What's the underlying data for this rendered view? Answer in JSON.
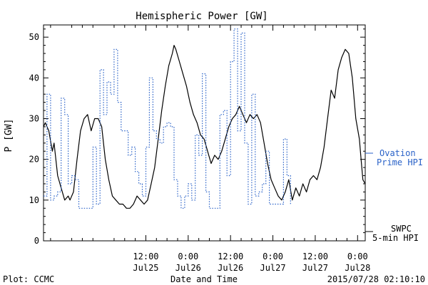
{
  "chart_data": {
    "type": "line",
    "title": "Hemispheric Power [GW]",
    "ylabel": "P [GW]",
    "xlabel": "Date and Time",
    "ylim": [
      0,
      53
    ],
    "yticks": [
      0,
      10,
      20,
      30,
      40,
      50
    ],
    "xlim": [
      "2015-07-24 07:00",
      "2015-07-28 02:10"
    ],
    "xticks": [
      {
        "at": "2015-07-25 12:00",
        "time": "12:00",
        "date": "Jul25"
      },
      {
        "at": "2015-07-26 00:00",
        "time": "0:00",
        "date": "Jul26"
      },
      {
        "at": "2015-07-26 12:00",
        "time": "12:00",
        "date": "Jul26"
      },
      {
        "at": "2015-07-27 00:00",
        "time": "0:00",
        "date": "Jul27"
      },
      {
        "at": "2015-07-27 12:00",
        "time": "12:00",
        "date": "Jul27"
      },
      {
        "at": "2015-07-28 00:00",
        "time": "0:00",
        "date": "Jul28"
      }
    ],
    "series": [
      {
        "name": "SWPC 5-min HPI",
        "style": "solid",
        "color": "#000000",
        "points": [
          [
            "2015-07-24 07:00",
            28
          ],
          [
            "2015-07-24 07:30",
            29
          ],
          [
            "2015-07-24 08:30",
            27
          ],
          [
            "2015-07-24 09:30",
            22
          ],
          [
            "2015-07-24 10:00",
            24
          ],
          [
            "2015-07-24 10:30",
            20
          ],
          [
            "2015-07-24 11:00",
            16
          ],
          [
            "2015-07-24 12:00",
            13
          ],
          [
            "2015-07-24 13:00",
            10
          ],
          [
            "2015-07-24 14:00",
            11
          ],
          [
            "2015-07-24 14:30",
            10
          ],
          [
            "2015-07-24 15:30",
            12
          ],
          [
            "2015-07-24 16:30",
            20
          ],
          [
            "2015-07-24 17:30",
            27
          ],
          [
            "2015-07-24 18:30",
            30
          ],
          [
            "2015-07-24 19:30",
            31
          ],
          [
            "2015-07-24 20:30",
            27
          ],
          [
            "2015-07-24 21:30",
            30
          ],
          [
            "2015-07-24 22:30",
            30
          ],
          [
            "2015-07-24 23:30",
            28
          ],
          [
            "2015-07-25 00:30",
            20
          ],
          [
            "2015-07-25 01:30",
            15
          ],
          [
            "2015-07-25 02:30",
            11
          ],
          [
            "2015-07-25 03:30",
            10
          ],
          [
            "2015-07-25 04:30",
            9
          ],
          [
            "2015-07-25 05:30",
            9
          ],
          [
            "2015-07-25 06:30",
            8
          ],
          [
            "2015-07-25 07:30",
            8
          ],
          [
            "2015-07-25 08:30",
            9
          ],
          [
            "2015-07-25 09:30",
            11
          ],
          [
            "2015-07-25 10:30",
            10
          ],
          [
            "2015-07-25 11:30",
            9
          ],
          [
            "2015-07-25 12:30",
            10
          ],
          [
            "2015-07-25 13:30",
            14
          ],
          [
            "2015-07-25 14:30",
            18
          ],
          [
            "2015-07-25 15:30",
            25
          ],
          [
            "2015-07-25 16:30",
            32
          ],
          [
            "2015-07-25 17:30",
            38
          ],
          [
            "2015-07-25 18:30",
            43
          ],
          [
            "2015-07-25 19:30",
            46
          ],
          [
            "2015-07-25 20:00",
            48
          ],
          [
            "2015-07-25 20:30",
            47
          ],
          [
            "2015-07-25 21:30",
            44
          ],
          [
            "2015-07-25 22:30",
            41
          ],
          [
            "2015-07-25 23:30",
            38
          ],
          [
            "2015-07-26 00:30",
            34
          ],
          [
            "2015-07-26 01:30",
            31
          ],
          [
            "2015-07-26 02:30",
            29
          ],
          [
            "2015-07-26 03:30",
            26
          ],
          [
            "2015-07-26 04:30",
            25
          ],
          [
            "2015-07-26 05:30",
            22
          ],
          [
            "2015-07-26 06:30",
            19
          ],
          [
            "2015-07-26 07:30",
            21
          ],
          [
            "2015-07-26 08:30",
            20
          ],
          [
            "2015-07-26 09:30",
            22
          ],
          [
            "2015-07-26 10:30",
            25
          ],
          [
            "2015-07-26 11:30",
            28
          ],
          [
            "2015-07-26 12:30",
            30
          ],
          [
            "2015-07-26 13:30",
            31
          ],
          [
            "2015-07-26 14:30",
            33
          ],
          [
            "2015-07-26 15:30",
            31
          ],
          [
            "2015-07-26 16:30",
            29
          ],
          [
            "2015-07-26 17:30",
            31
          ],
          [
            "2015-07-26 18:30",
            30
          ],
          [
            "2015-07-26 19:30",
            31
          ],
          [
            "2015-07-26 20:30",
            29
          ],
          [
            "2015-07-26 21:30",
            24
          ],
          [
            "2015-07-26 22:30",
            19
          ],
          [
            "2015-07-26 23:30",
            15
          ],
          [
            "2015-07-27 00:30",
            13
          ],
          [
            "2015-07-27 01:30",
            11
          ],
          [
            "2015-07-27 02:30",
            10
          ],
          [
            "2015-07-27 03:30",
            12
          ],
          [
            "2015-07-27 04:30",
            15
          ],
          [
            "2015-07-27 05:30",
            10
          ],
          [
            "2015-07-27 06:30",
            13
          ],
          [
            "2015-07-27 07:30",
            11
          ],
          [
            "2015-07-27 08:30",
            14
          ],
          [
            "2015-07-27 09:30",
            12
          ],
          [
            "2015-07-27 10:30",
            15
          ],
          [
            "2015-07-27 11:30",
            16
          ],
          [
            "2015-07-27 12:30",
            15
          ],
          [
            "2015-07-27 13:30",
            18
          ],
          [
            "2015-07-27 14:30",
            23
          ],
          [
            "2015-07-27 15:30",
            30
          ],
          [
            "2015-07-27 16:30",
            37
          ],
          [
            "2015-07-27 17:30",
            35
          ],
          [
            "2015-07-27 18:30",
            42
          ],
          [
            "2015-07-27 19:30",
            45
          ],
          [
            "2015-07-27 20:30",
            47
          ],
          [
            "2015-07-27 21:30",
            46
          ],
          [
            "2015-07-27 22:30",
            40
          ],
          [
            "2015-07-27 23:30",
            30
          ],
          [
            "2015-07-28 00:30",
            25
          ],
          [
            "2015-07-28 01:00",
            20
          ],
          [
            "2015-07-28 01:30",
            15
          ],
          [
            "2015-07-28 02:10",
            14
          ]
        ]
      },
      {
        "name": "Ovation Prime HPI",
        "style": "dotted",
        "color": "#2a62c8",
        "points": [
          [
            "2015-07-24 07:00",
            11
          ],
          [
            "2015-07-24 08:00",
            36
          ],
          [
            "2015-07-24 09:00",
            10
          ],
          [
            "2015-07-24 10:00",
            11
          ],
          [
            "2015-07-24 11:00",
            12
          ],
          [
            "2015-07-24 12:00",
            35
          ],
          [
            "2015-07-24 13:00",
            31
          ],
          [
            "2015-07-24 14:00",
            14
          ],
          [
            "2015-07-24 15:00",
            16
          ],
          [
            "2015-07-24 16:00",
            15
          ],
          [
            "2015-07-24 17:00",
            8
          ],
          [
            "2015-07-24 18:00",
            8
          ],
          [
            "2015-07-24 19:00",
            8
          ],
          [
            "2015-07-24 20:00",
            8
          ],
          [
            "2015-07-24 21:00",
            23
          ],
          [
            "2015-07-24 22:00",
            9
          ],
          [
            "2015-07-24 23:00",
            42
          ],
          [
            "2015-07-25 00:00",
            31
          ],
          [
            "2015-07-25 01:00",
            39
          ],
          [
            "2015-07-25 02:00",
            36
          ],
          [
            "2015-07-25 03:00",
            47
          ],
          [
            "2015-07-25 04:00",
            34
          ],
          [
            "2015-07-25 05:00",
            27
          ],
          [
            "2015-07-25 06:00",
            27
          ],
          [
            "2015-07-25 07:00",
            21
          ],
          [
            "2015-07-25 08:00",
            23
          ],
          [
            "2015-07-25 09:00",
            17
          ],
          [
            "2015-07-25 10:00",
            14
          ],
          [
            "2015-07-25 11:00",
            11
          ],
          [
            "2015-07-25 12:00",
            23
          ],
          [
            "2015-07-25 13:00",
            40
          ],
          [
            "2015-07-25 14:00",
            27
          ],
          [
            "2015-07-25 15:00",
            25
          ],
          [
            "2015-07-25 16:00",
            24
          ],
          [
            "2015-07-25 17:00",
            28
          ],
          [
            "2015-07-25 18:00",
            29
          ],
          [
            "2015-07-25 19:00",
            28
          ],
          [
            "2015-07-25 20:00",
            15
          ],
          [
            "2015-07-25 21:00",
            11
          ],
          [
            "2015-07-25 22:00",
            8
          ],
          [
            "2015-07-25 23:00",
            11
          ],
          [
            "2015-07-26 00:00",
            14
          ],
          [
            "2015-07-26 01:00",
            10
          ],
          [
            "2015-07-26 02:00",
            26
          ],
          [
            "2015-07-26 03:00",
            21
          ],
          [
            "2015-07-26 04:00",
            41
          ],
          [
            "2015-07-26 05:00",
            12
          ],
          [
            "2015-07-26 06:00",
            8
          ],
          [
            "2015-07-26 07:00",
            8
          ],
          [
            "2015-07-26 08:00",
            8
          ],
          [
            "2015-07-26 09:00",
            31
          ],
          [
            "2015-07-26 10:00",
            32
          ],
          [
            "2015-07-26 11:00",
            16
          ],
          [
            "2015-07-26 12:00",
            44
          ],
          [
            "2015-07-26 13:00",
            52
          ],
          [
            "2015-07-26 14:00",
            27
          ],
          [
            "2015-07-26 15:00",
            51
          ],
          [
            "2015-07-26 16:00",
            24
          ],
          [
            "2015-07-26 17:00",
            9
          ],
          [
            "2015-07-26 18:00",
            36
          ],
          [
            "2015-07-26 19:00",
            11
          ],
          [
            "2015-07-26 20:00",
            12
          ],
          [
            "2015-07-26 21:00",
            14
          ],
          [
            "2015-07-26 22:00",
            22
          ],
          [
            "2015-07-26 23:00",
            9
          ],
          [
            "2015-07-27 00:00",
            9
          ],
          [
            "2015-07-27 01:00",
            9
          ],
          [
            "2015-07-27 02:00",
            9
          ],
          [
            "2015-07-27 03:00",
            25
          ],
          [
            "2015-07-27 04:00",
            16
          ],
          [
            "2015-07-27 05:00",
            9
          ]
        ]
      }
    ],
    "legend": [
      {
        "series": "Ovation Prime HPI",
        "line1": "Ovation",
        "line2": "Prime HPI",
        "placement": "right"
      },
      {
        "series": "SWPC 5-min HPI",
        "line1": "SWPC",
        "line2": "5-min HPI",
        "placement": "bottom-right"
      }
    ]
  },
  "footer": {
    "left": "Plot: CCMC",
    "right": "2015/07/28 02:10:10"
  }
}
